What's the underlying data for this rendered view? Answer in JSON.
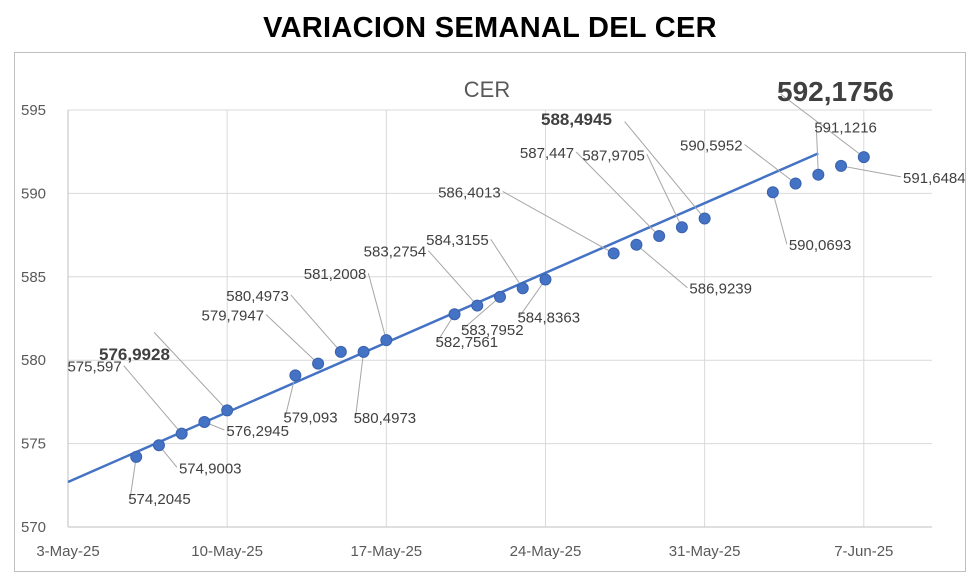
{
  "title": "VARIACION SEMANAL DEL CER",
  "chart_data": {
    "type": "line",
    "title": "CER",
    "xlabel": "",
    "ylabel": "",
    "ylim": [
      570,
      595
    ],
    "y_ticks": [
      "570",
      "575",
      "580",
      "585",
      "590",
      "595"
    ],
    "x_ticks": [
      "3-May-25",
      "10-May-25",
      "17-May-25",
      "24-May-25",
      "31-May-25",
      "7-Jun-25"
    ],
    "x_range": [
      "2025-05-03",
      "2025-06-10"
    ],
    "grid": true,
    "legend": "none",
    "series_color": "#4472c4",
    "trendline": {
      "from": [
        "2025-05-03",
        572.7
      ],
      "to": [
        "2025-06-05",
        592.4
      ]
    },
    "points": [
      {
        "date": "2025-05-06",
        "value": 574.2045,
        "label": "574,2045"
      },
      {
        "date": "2025-05-07",
        "value": 574.9003,
        "label": "574,9003"
      },
      {
        "date": "2025-05-08",
        "value": 575.597,
        "label": "575,597"
      },
      {
        "date": "2025-05-09",
        "value": 576.2945,
        "label": "576,2945"
      },
      {
        "date": "2025-05-10",
        "value": 576.9928,
        "label": "576,9928",
        "emphasis": "bold"
      },
      {
        "date": "2025-05-13",
        "value": 579.093,
        "label": "579,093"
      },
      {
        "date": "2025-05-14",
        "value": 579.7947,
        "label": "579,7947"
      },
      {
        "date": "2025-05-15",
        "value": 580.4973,
        "label": "580,4973"
      },
      {
        "date": "2025-05-16",
        "value": 580.4973,
        "label": "580,4973"
      },
      {
        "date": "2025-05-17",
        "value": 581.2008,
        "label": "581,2008"
      },
      {
        "date": "2025-05-20",
        "value": 582.7561,
        "label": "582,7561"
      },
      {
        "date": "2025-05-21",
        "value": 583.2754,
        "label": "583,2754"
      },
      {
        "date": "2025-05-22",
        "value": 583.7952,
        "label": "583,7952"
      },
      {
        "date": "2025-05-23",
        "value": 584.3155,
        "label": "584,3155"
      },
      {
        "date": "2025-05-24",
        "value": 584.8363,
        "label": "584,8363"
      },
      {
        "date": "2025-05-27",
        "value": 586.4013,
        "label": "586,4013"
      },
      {
        "date": "2025-05-28",
        "value": 586.9239,
        "label": "586,9239"
      },
      {
        "date": "2025-05-29",
        "value": 587.447,
        "label": "587,447"
      },
      {
        "date": "2025-05-30",
        "value": 587.9705,
        "label": "587,9705"
      },
      {
        "date": "2025-05-31",
        "value": 588.4945,
        "label": "588,4945",
        "emphasis": "bold"
      },
      {
        "date": "2025-06-03",
        "value": 590.0693,
        "label": "590,0693"
      },
      {
        "date": "2025-06-04",
        "value": 590.5952,
        "label": "590,5952"
      },
      {
        "date": "2025-06-05",
        "value": 591.1216,
        "label": "591,1216"
      },
      {
        "date": "2025-06-06",
        "value": 591.6484,
        "label": "591,6484"
      },
      {
        "date": "2025-06-07",
        "value": 592.1756,
        "label": "592,1756",
        "emphasis": "large"
      }
    ]
  }
}
